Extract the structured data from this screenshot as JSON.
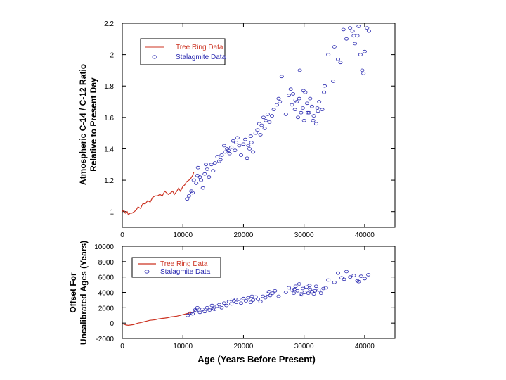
{
  "chart_data": [
    {
      "type": "scatter",
      "ylabel": [
        "Atmospheric C-14 / C-12 Ratio",
        "Relative to Present Day"
      ],
      "xlabel": "",
      "xlim": [
        0,
        45000
      ],
      "ylim": [
        0.9,
        2.2
      ],
      "x_ticks": [
        "0",
        "10000",
        "20000",
        "30000",
        "40000"
      ],
      "y_ticks": [
        "1",
        "1.2",
        "1.4",
        "1.6",
        "1.8",
        "2",
        "2.2"
      ],
      "grid": false,
      "legend_placement": "top-left",
      "series": [
        {
          "name": "Tree Ring Data",
          "kind": "line",
          "color": "#cc3322",
          "x": [
            0,
            250,
            500,
            800,
            1000,
            1300,
            1600,
            2000,
            2300,
            2600,
            3000,
            3400,
            3800,
            4200,
            4600,
            5000,
            5400,
            5800,
            6200,
            6600,
            7000,
            7300,
            7600,
            8000,
            8300,
            8600,
            9000,
            9300,
            9600,
            10000,
            10300,
            10600,
            11000,
            11300,
            11600,
            11800
          ],
          "y": [
            1.0,
            1.01,
            0.99,
            1.0,
            0.98,
            0.99,
            0.99,
            1.0,
            1.01,
            1.03,
            1.02,
            1.05,
            1.05,
            1.07,
            1.06,
            1.09,
            1.1,
            1.1,
            1.11,
            1.1,
            1.13,
            1.12,
            1.11,
            1.12,
            1.13,
            1.11,
            1.13,
            1.15,
            1.13,
            1.16,
            1.17,
            1.19,
            1.2,
            1.21,
            1.23,
            1.25
          ]
        },
        {
          "name": "Stalagmite Data",
          "kind": "scatter",
          "color": "#2a2ab0",
          "x": [
            10700,
            11000,
            11400,
            11800,
            12200,
            12500,
            12800,
            13000,
            13300,
            13600,
            14000,
            14300,
            14700,
            15000,
            15300,
            15700,
            16000,
            16400,
            16800,
            17000,
            17300,
            17700,
            18000,
            18300,
            18600,
            19000,
            19300,
            19600,
            20000,
            20300,
            20600,
            21000,
            21300,
            21600,
            22000,
            22300,
            22600,
            23000,
            23300,
            23700,
            24000,
            24300,
            24700,
            25000,
            25500,
            26000,
            26300,
            27000,
            27500,
            28000,
            28200,
            28500,
            28800,
            29000,
            29200,
            29500,
            29800,
            30000,
            30200,
            30500,
            30800,
            31000,
            31300,
            31600,
            32000,
            32300,
            32500,
            33000,
            33400,
            34000,
            35000,
            36000,
            36500,
            37000,
            37600,
            38000,
            38400,
            38800,
            39000,
            39300,
            39600,
            40000,
            40400,
            40700,
            12400,
            13800,
            16200,
            18800,
            21200,
            23500,
            28600,
            29300,
            29900,
            30600,
            31500,
            32200,
            20800,
            22800,
            25800,
            11600,
            17500,
            27800,
            33300,
            34800,
            35600,
            38200,
            39800
          ],
          "y": [
            1.08,
            1.1,
            1.13,
            1.2,
            1.18,
            1.28,
            1.22,
            1.2,
            1.15,
            1.24,
            1.27,
            1.22,
            1.3,
            1.26,
            1.31,
            1.35,
            1.32,
            1.36,
            1.42,
            1.38,
            1.4,
            1.37,
            1.41,
            1.45,
            1.39,
            1.47,
            1.42,
            1.36,
            1.43,
            1.46,
            1.34,
            1.4,
            1.44,
            1.38,
            1.5,
            1.52,
            1.56,
            1.55,
            1.6,
            1.58,
            1.62,
            1.57,
            1.61,
            1.65,
            1.68,
            1.7,
            1.86,
            1.62,
            1.74,
            1.68,
            1.75,
            1.65,
            1.7,
            1.6,
            1.72,
            1.63,
            1.66,
            1.58,
            1.76,
            1.69,
            1.63,
            1.72,
            1.67,
            1.61,
            1.56,
            1.64,
            1.7,
            1.65,
            1.8,
            2.0,
            2.05,
            1.95,
            2.16,
            2.1,
            2.17,
            2.15,
            2.07,
            2.12,
            2.18,
            2.0,
            1.9,
            2.02,
            2.17,
            2.15,
            1.23,
            1.3,
            1.33,
            1.44,
            1.48,
            1.53,
            1.71,
            1.9,
            1.77,
            1.63,
            1.58,
            1.66,
            1.42,
            1.49,
            1.72,
            1.12,
            1.39,
            1.78,
            1.76,
            1.83,
            1.97,
            2.12,
            1.88
          ]
        }
      ]
    },
    {
      "type": "scatter",
      "ylabel": [
        "Offset For",
        "Uncalibrated Ages (Years)"
      ],
      "xlabel": "Age (Years Before Present)",
      "xlim": [
        0,
        45000
      ],
      "ylim": [
        -2000,
        10000
      ],
      "x_ticks": [
        "0",
        "10000",
        "20000",
        "30000",
        "40000"
      ],
      "y_ticks": [
        "-2000",
        "0",
        "2000",
        "4000",
        "6000",
        "8000",
        "10000"
      ],
      "grid": false,
      "legend_placement": "top-left",
      "series": [
        {
          "name": "Tree Ring Data",
          "kind": "line",
          "color": "#cc3322",
          "x": [
            0,
            300,
            600,
            1000,
            1400,
            1800,
            2200,
            2600,
            3000,
            3500,
            4000,
            4500,
            5000,
            5500,
            6000,
            6500,
            7000,
            7500,
            8000,
            8500,
            9000,
            9500,
            10000,
            10500,
            11000,
            11500,
            11800
          ],
          "y": [
            -100,
            -150,
            -250,
            -300,
            -250,
            -200,
            -100,
            0,
            50,
            150,
            250,
            350,
            400,
            450,
            550,
            600,
            650,
            700,
            800,
            850,
            900,
            1000,
            1100,
            1200,
            1300,
            1400,
            1500
          ]
        },
        {
          "name": "Stalagmite Data",
          "kind": "scatter",
          "color": "#2a2ab0",
          "x": [
            10800,
            11200,
            11600,
            12000,
            12400,
            12800,
            13200,
            13600,
            14000,
            14400,
            14800,
            15200,
            15600,
            16000,
            16400,
            16800,
            17200,
            17600,
            18000,
            18400,
            18800,
            19200,
            19600,
            20000,
            20400,
            20800,
            21200,
            21600,
            22000,
            22400,
            22800,
            23200,
            23600,
            24000,
            24400,
            24800,
            25200,
            25800,
            27000,
            27500,
            28000,
            28300,
            28600,
            28900,
            29200,
            29500,
            29800,
            30100,
            30400,
            30700,
            31000,
            31300,
            31600,
            32000,
            32400,
            32800,
            33200,
            34000,
            35000,
            35600,
            36200,
            37000,
            37600,
            38200,
            38800,
            39400,
            40000,
            40600,
            12200,
            15000,
            18200,
            21400,
            24200,
            28400,
            29700,
            30900,
            31800,
            33600,
            36600,
            39000
          ],
          "y": [
            1000,
            1300,
            1200,
            1700,
            2000,
            1400,
            1800,
            1500,
            2000,
            1700,
            2300,
            1800,
            2200,
            2400,
            2000,
            2600,
            2300,
            2800,
            2500,
            2900,
            2700,
            3100,
            2600,
            3200,
            2900,
            3300,
            2700,
            3000,
            3400,
            3100,
            2800,
            3500,
            3300,
            3800,
            3600,
            3900,
            4200,
            3500,
            4000,
            4600,
            4300,
            3900,
            4800,
            4200,
            5100,
            3800,
            4500,
            4000,
            4700,
            3900,
            4400,
            4100,
            3800,
            4800,
            4300,
            3900,
            4500,
            5600,
            5300,
            6500,
            5900,
            6700,
            6000,
            6200,
            5500,
            6100,
            5800,
            6300,
            1600,
            1900,
            3100,
            3500,
            4100,
            4400,
            3700,
            4900,
            4200,
            4600,
            5700,
            5400
          ]
        }
      ]
    }
  ]
}
